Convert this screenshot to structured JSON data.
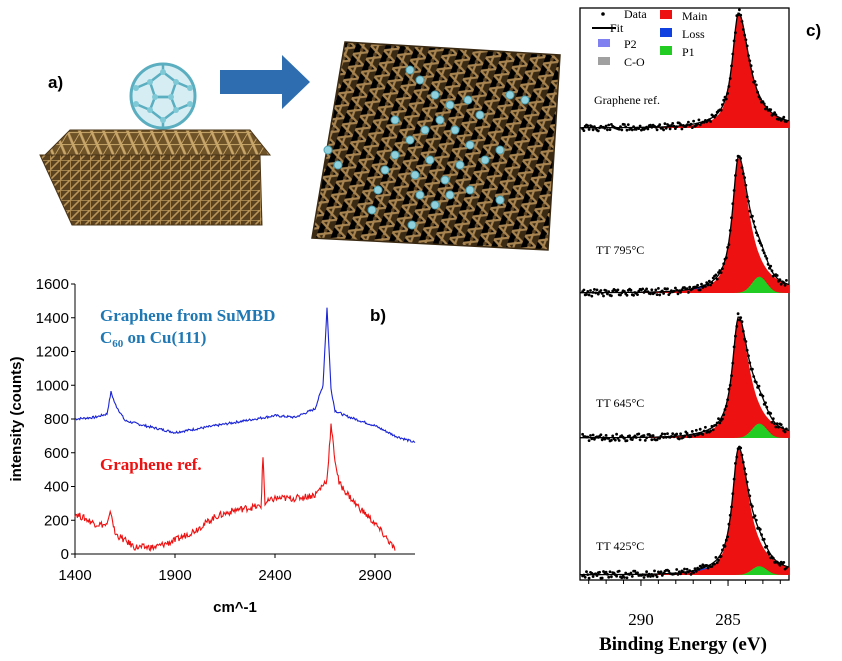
{
  "panel_a": {
    "label": "a)",
    "colors": {
      "copper": "#8a6a3a",
      "carbon": "#7fc8d6",
      "arrow": "#2e6eb0"
    }
  },
  "panel_b": {
    "label": "b)",
    "annotation_line1": "Graphene from SuMBD",
    "annotation_c": "C",
    "annotation_sub": "60",
    "annotation_rest": " on Cu(111)",
    "annotation_ref": "Graphene ref.",
    "colors": {
      "sumbd": "#1a24d4",
      "ref": "#ee1111",
      "annot_blue": "#1f78b4"
    }
  },
  "panel_c": {
    "label": "c)",
    "xlabel": "Binding Energy (eV)",
    "ticks": [
      "290",
      "285"
    ],
    "legend": [
      "Data",
      "Fit",
      "P2",
      "C-O",
      "Main",
      "Loss",
      "P1"
    ],
    "spectra_labels": [
      "Graphene ref.",
      "TT 795°C",
      "TT 645°C",
      "TT 425°C"
    ],
    "colors": {
      "main": "#ee1111",
      "p2": "#8080f0",
      "co": "#a0a0a0",
      "loss": "#1040e0",
      "p1": "#22cc22"
    }
  },
  "chart_data": [
    {
      "type": "line",
      "title": "",
      "xlabel": "cm^-1",
      "ylabel": "intensity (counts)",
      "xlim": [
        1400,
        3100
      ],
      "ylim": [
        0,
        1600
      ],
      "xticks": [
        1400,
        1900,
        2400,
        2900
      ],
      "yticks": [
        0,
        200,
        400,
        600,
        800,
        1000,
        1200,
        1400,
        1600
      ],
      "grid": false,
      "series": [
        {
          "name": "Graphene from SuMBD C60 on Cu(111)",
          "color": "#1a24d4",
          "x": [
            1400,
            1500,
            1560,
            1580,
            1600,
            1650,
            1750,
            1900,
            2050,
            2200,
            2300,
            2400,
            2500,
            2600,
            2640,
            2660,
            2680,
            2700,
            2750,
            2900,
            3000,
            3100
          ],
          "y": [
            800,
            810,
            830,
            960,
            890,
            790,
            760,
            720,
            750,
            780,
            800,
            820,
            810,
            860,
            1000,
            1460,
            980,
            850,
            820,
            760,
            700,
            660
          ]
        },
        {
          "name": "Graphene ref.",
          "color": "#ee1111",
          "x": [
            1400,
            1500,
            1560,
            1580,
            1600,
            1700,
            1800,
            1900,
            2000,
            2100,
            2200,
            2300,
            2330,
            2340,
            2350,
            2400,
            2500,
            2600,
            2660,
            2680,
            2700,
            2720,
            2800,
            2900,
            2980,
            3000
          ],
          "y": [
            240,
            180,
            170,
            250,
            120,
            40,
            40,
            80,
            140,
            220,
            260,
            280,
            280,
            580,
            300,
            330,
            330,
            350,
            440,
            760,
            560,
            420,
            300,
            180,
            60,
            20
          ]
        }
      ],
      "text_annotations": [
        "Graphene from SuMBD C60 on Cu(111)",
        "Graphene ref."
      ]
    },
    {
      "type": "area",
      "title": "",
      "xlabel": "Binding Energy (eV)",
      "xlim": [
        293.5,
        281.5
      ],
      "x_reversed": true,
      "xticks": [
        290,
        285
      ],
      "grid": false,
      "legend": [
        "Data",
        "Fit",
        "P2",
        "C-O",
        "Main",
        "Loss",
        "P1"
      ],
      "stacked_spectra": [
        {
          "label": "Graphene ref.",
          "main_peak_eV": 284.4,
          "main_height": 1.0,
          "p1_height": 0.0,
          "loss_height": 0.02,
          "p2_height": 0.05
        },
        {
          "label": "TT 795°C",
          "main_peak_eV": 284.4,
          "main_height": 1.0,
          "p1_height": 0.12,
          "loss_height": 0.06,
          "p2_height": 0.04
        },
        {
          "label": "TT 645°C",
          "main_peak_eV": 284.4,
          "main_height": 1.0,
          "p1_height": 0.12,
          "loss_height": 0.05,
          "p2_height": 0.04
        },
        {
          "label": "TT 425°C",
          "main_peak_eV": 284.4,
          "main_height": 1.0,
          "p1_height": 0.07,
          "loss_height": 0.06,
          "p2_height": 0.05
        }
      ]
    }
  ]
}
